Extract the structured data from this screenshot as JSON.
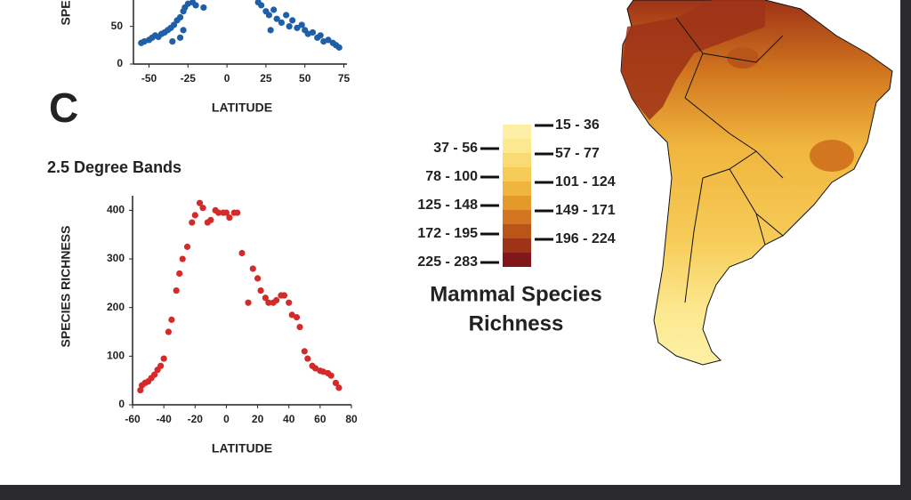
{
  "panel_label": "C",
  "chart_data": [
    {
      "type": "scatter",
      "y_label": "SPECIES RICHNESS",
      "x_label": "LATITUDE",
      "color": "#1f5fa8",
      "xlim": [
        -60,
        77
      ],
      "ylim": [
        0,
        85
      ],
      "xticks": [
        -50,
        -25,
        0,
        25,
        50,
        75
      ],
      "yticks": [
        0,
        50
      ],
      "x": [
        -55,
        -53,
        -50,
        -48,
        -46,
        -44,
        -42,
        -40,
        -38,
        -36,
        -34,
        -32,
        -30,
        -28,
        -27,
        -25,
        -22,
        -20,
        -30,
        -35,
        -15,
        -28,
        20,
        22,
        25,
        27,
        28,
        30,
        32,
        35,
        38,
        40,
        42,
        45,
        48,
        50,
        52,
        55,
        58,
        60,
        62,
        65,
        68,
        70,
        72
      ],
      "values": [
        28,
        30,
        32,
        35,
        38,
        36,
        40,
        42,
        45,
        48,
        52,
        58,
        62,
        70,
        75,
        80,
        82,
        78,
        35,
        30,
        75,
        45,
        82,
        78,
        70,
        65,
        45,
        72,
        60,
        55,
        65,
        50,
        58,
        48,
        52,
        45,
        40,
        42,
        35,
        38,
        30,
        32,
        28,
        25,
        22
      ]
    },
    {
      "type": "scatter",
      "title": "2.5 Degree Bands",
      "y_label": "SPECIES RICHNESS",
      "x_label": "LATITUDE",
      "color": "#d42a2a",
      "xlim": [
        -60,
        80
      ],
      "ylim": [
        0,
        430
      ],
      "xticks": [
        -60,
        -40,
        -20,
        0,
        20,
        40,
        60,
        80
      ],
      "yticks": [
        0,
        100,
        200,
        300,
        400
      ],
      "x": [
        -55,
        -54,
        -52,
        -50,
        -48,
        -46,
        -44,
        -42,
        -40,
        -37,
        -35,
        -32,
        -30,
        -28,
        -25,
        -22,
        -20,
        -17,
        -15,
        -12,
        -10,
        -7,
        -5,
        -2,
        0,
        2,
        5,
        7,
        10,
        14,
        17,
        20,
        22,
        25,
        27,
        30,
        32,
        35,
        37,
        40,
        42,
        45,
        47,
        50,
        52,
        55,
        57,
        60,
        62,
        65,
        67,
        70,
        72
      ],
      "values": [
        30,
        40,
        45,
        48,
        55,
        62,
        72,
        80,
        95,
        150,
        175,
        235,
        270,
        300,
        325,
        375,
        390,
        415,
        405,
        375,
        380,
        400,
        395,
        395,
        395,
        385,
        395,
        395,
        312,
        210,
        280,
        260,
        235,
        220,
        210,
        210,
        215,
        225,
        225,
        210,
        185,
        180,
        160,
        110,
        95,
        80,
        75,
        70,
        68,
        65,
        60,
        45,
        35
      ]
    }
  ],
  "legend": {
    "title": [
      "Mammal Species",
      "Richness"
    ],
    "bins": [
      {
        "label": "15 - 36",
        "color": "#fdf0a6"
      },
      {
        "label": "37 - 56",
        "color": "#fce88f"
      },
      {
        "label": "57 - 77",
        "color": "#fadb73"
      },
      {
        "label": "78 - 100",
        "color": "#f6cb57"
      },
      {
        "label": "101 - 124",
        "color": "#f0b53d"
      },
      {
        "label": "125 - 148",
        "color": "#e49a2b"
      },
      {
        "label": "149 - 171",
        "color": "#d2771f"
      },
      {
        "label": "172 - 195",
        "color": "#b95518"
      },
      {
        "label": "196 - 224",
        "color": "#9e3317"
      },
      {
        "label": "225 - 283",
        "color": "#82171a"
      }
    ]
  }
}
